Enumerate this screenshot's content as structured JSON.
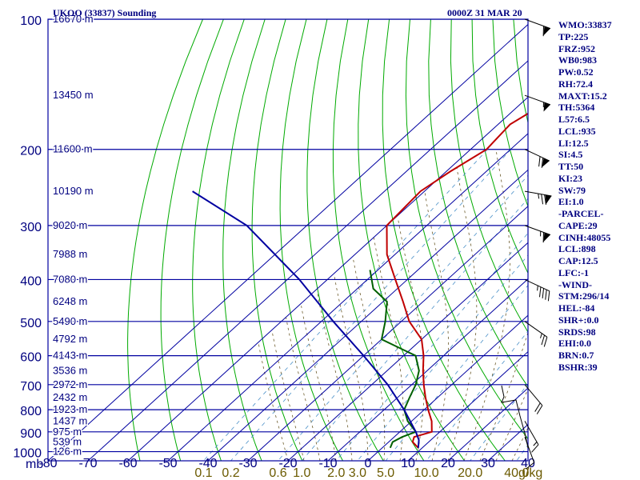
{
  "chart_data": {
    "type": "line",
    "title": "UKOO (33837) Sounding",
    "valid_time": "0000Z 31 MAR 20",
    "pressure_levels": [
      100,
      200,
      300,
      400,
      500,
      600,
      700,
      800,
      900,
      1000
    ],
    "pressure_tick_labels": [
      "100",
      "200",
      "300",
      "400",
      "500",
      "600",
      "700",
      "800",
      "900",
      "1000"
    ],
    "pressure_axis_unit": "mb",
    "temperature_ticks": [
      -80,
      -70,
      -60,
      -50,
      -40,
      -30,
      -20,
      -10,
      0,
      10,
      20,
      30,
      40
    ],
    "temperature_tick_labels": [
      "-80",
      "-70",
      "-60",
      "-50",
      "-40",
      "-30",
      "-20",
      "-10",
      "0",
      "10",
      "20",
      "30",
      "40"
    ],
    "mixing_ratio_labels": [
      "0.1",
      "0.2",
      "0.6",
      "1.0",
      "2.0",
      "3.0",
      "5.0",
      "10.0",
      "20.0",
      "40.0"
    ],
    "mixing_ratio_unit": "g/kg",
    "height_labels": [
      {
        "p": 100,
        "label": "16670 m"
      },
      {
        "p": 150,
        "label": "13450 m"
      },
      {
        "p": 200,
        "label": "11600 m"
      },
      {
        "p": 250,
        "label": "10190 m"
      },
      {
        "p": 300,
        "label": "9020 m"
      },
      {
        "p": 350,
        "label": "7988 m"
      },
      {
        "p": 400,
        "label": "7080 m"
      },
      {
        "p": 450,
        "label": "6248 m"
      },
      {
        "p": 500,
        "label": "5490 m"
      },
      {
        "p": 550,
        "label": "4792 m"
      },
      {
        "p": 600,
        "label": "4143 m"
      },
      {
        "p": 650,
        "label": "3536 m"
      },
      {
        "p": 700,
        "label": "2972 m"
      },
      {
        "p": 750,
        "label": "2432 m"
      },
      {
        "p": 800,
        "label": "1923 m"
      },
      {
        "p": 850,
        "label": "1437 m"
      },
      {
        "p": 900,
        "label": "975 m"
      },
      {
        "p": 950,
        "label": "539 m"
      },
      {
        "p": 1000,
        "label": "126 m"
      }
    ],
    "series": [
      {
        "name": "temperature",
        "color": "#c00000",
        "points": [
          [
            100,
            -53
          ],
          [
            150,
            -53
          ],
          [
            175,
            -57
          ],
          [
            200,
            -56
          ],
          [
            225,
            -59
          ],
          [
            250,
            -61
          ],
          [
            300,
            -60
          ],
          [
            350,
            -52
          ],
          [
            400,
            -43
          ],
          [
            450,
            -35
          ],
          [
            500,
            -28
          ],
          [
            550,
            -20
          ],
          [
            600,
            -15
          ],
          [
            650,
            -11
          ],
          [
            700,
            -7
          ],
          [
            750,
            -3
          ],
          [
            800,
            1
          ],
          [
            850,
            5
          ],
          [
            900,
            8
          ],
          [
            925,
            5
          ],
          [
            950,
            6
          ],
          [
            980,
            9
          ]
        ]
      },
      {
        "name": "dewpoint",
        "color": "#006000",
        "points": [
          [
            380,
            -52
          ],
          [
            420,
            -46
          ],
          [
            450,
            -39
          ],
          [
            500,
            -34
          ],
          [
            550,
            -30
          ],
          [
            600,
            -17
          ],
          [
            650,
            -12
          ],
          [
            700,
            -9
          ],
          [
            750,
            -7
          ],
          [
            800,
            -5
          ],
          [
            850,
            -1
          ],
          [
            900,
            4
          ],
          [
            925,
            2
          ],
          [
            950,
            1
          ],
          [
            980,
            2
          ]
        ]
      },
      {
        "name": "parcel",
        "color": "#0000a0",
        "points": [
          [
            250,
            -118
          ],
          [
            300,
            -95
          ],
          [
            400,
            -67
          ],
          [
            500,
            -47
          ],
          [
            600,
            -30
          ],
          [
            700,
            -16
          ],
          [
            800,
            -5
          ],
          [
            900,
            4
          ],
          [
            940,
            7
          ],
          [
            980,
            9
          ]
        ]
      }
    ],
    "wind_barbs": [
      {
        "p": 100,
        "dir": 290,
        "speed": 60
      },
      {
        "p": 150,
        "dir": 290,
        "speed": 55
      },
      {
        "p": 200,
        "dir": 295,
        "speed": 70
      },
      {
        "p": 250,
        "dir": 280,
        "speed": 75
      },
      {
        "p": 300,
        "dir": 290,
        "speed": 65
      },
      {
        "p": 400,
        "dir": 295,
        "speed": 45
      },
      {
        "p": 500,
        "dir": 305,
        "speed": 25
      },
      {
        "p": 700,
        "dir": 320,
        "speed": 20
      },
      {
        "p": 850,
        "dir": 330,
        "speed": 15
      },
      {
        "p": 925,
        "dir": 340,
        "speed": 10
      }
    ],
    "hodograph": [
      [
        627,
        482
      ],
      [
        630,
        496
      ],
      [
        627,
        503
      ],
      [
        645,
        500
      ],
      [
        650,
        520
      ],
      [
        657,
        545
      ],
      [
        660,
        560
      ]
    ]
  },
  "indices": [
    "WMO:33837",
    "TP:225",
    "FRZ:952",
    "WB0:983",
    "PW:0.52",
    "RH:72.4",
    "MAXT:15.2",
    "TH:5364",
    "L57:6.5",
    "LCL:935",
    "LI:12.5",
    "SI:4.5",
    "TT:50",
    "KI:23",
    "SW:79",
    "EI:1.0",
    "-PARCEL-",
    "CAPE:29",
    "CINH:48055",
    "LCL:898",
    "CAP:12.5",
    "LFC:-1",
    "-WIND-",
    "STM:296/14",
    "HEL:-84",
    "SHR+:0.0",
    "SRDS:98",
    "EHI:0.0",
    "BRN:0.7",
    "BSHR:39"
  ],
  "colors": {
    "frame": "#0000a0",
    "dry_adiabat": "#00aa00",
    "moist_adiabat": "#6b5a2a",
    "mixing_ratio": "#4a90c8",
    "label_text": "#000080",
    "mixing_label": "#6b5a00"
  }
}
